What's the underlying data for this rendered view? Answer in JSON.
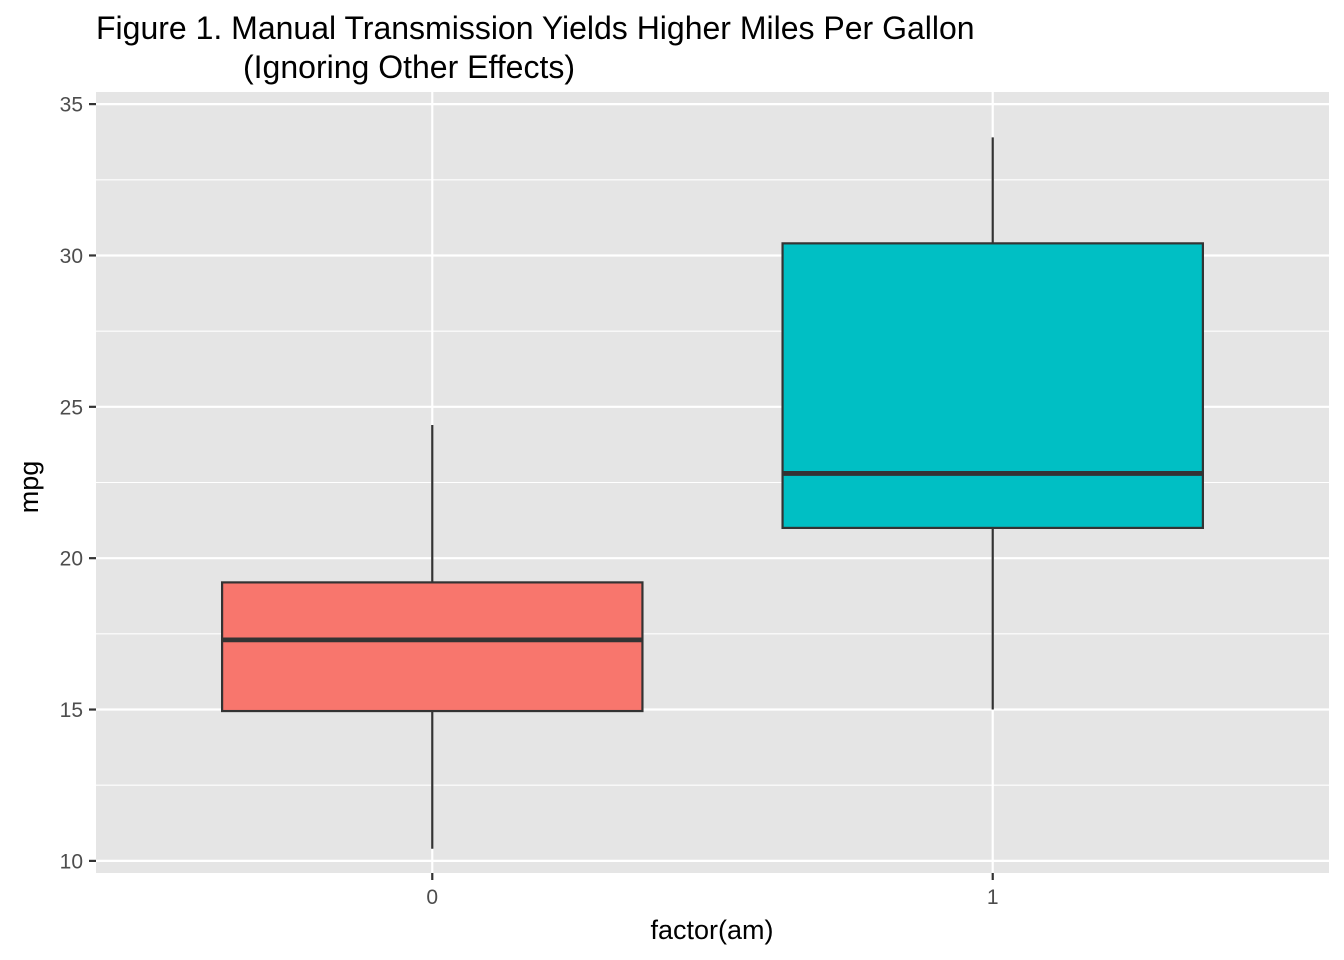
{
  "chart_data": {
    "type": "boxplot",
    "title_lines": [
      "Figure 1. Manual Transmission Yields Higher Miles Per Gallon",
      "(Ignoring Other Effects)"
    ],
    "xlabel": "factor(am)",
    "ylabel": "mpg",
    "categories": [
      "0",
      "1"
    ],
    "ylim": [
      9.6,
      35.4
    ],
    "y_ticks": [
      10,
      15,
      20,
      25,
      30,
      35
    ],
    "y_tick_labels": [
      "10",
      "15",
      "20",
      "25",
      "30",
      "35"
    ],
    "grid": true,
    "legend": "none",
    "boxes": [
      {
        "category": "0",
        "min": 10.4,
        "q1": 14.95,
        "median": 17.3,
        "q3": 19.2,
        "max": 24.4,
        "color": "#F8766D"
      },
      {
        "category": "1",
        "min": 15.0,
        "q1": 21.0,
        "median": 22.8,
        "q3": 30.4,
        "max": 33.9,
        "color": "#00BFC4"
      }
    ]
  },
  "colors": {
    "panel_background": "#E5E5E5",
    "grid_line": "#FFFFFF",
    "box_outline": "#333333",
    "tick_label": "#4D4D4D"
  }
}
